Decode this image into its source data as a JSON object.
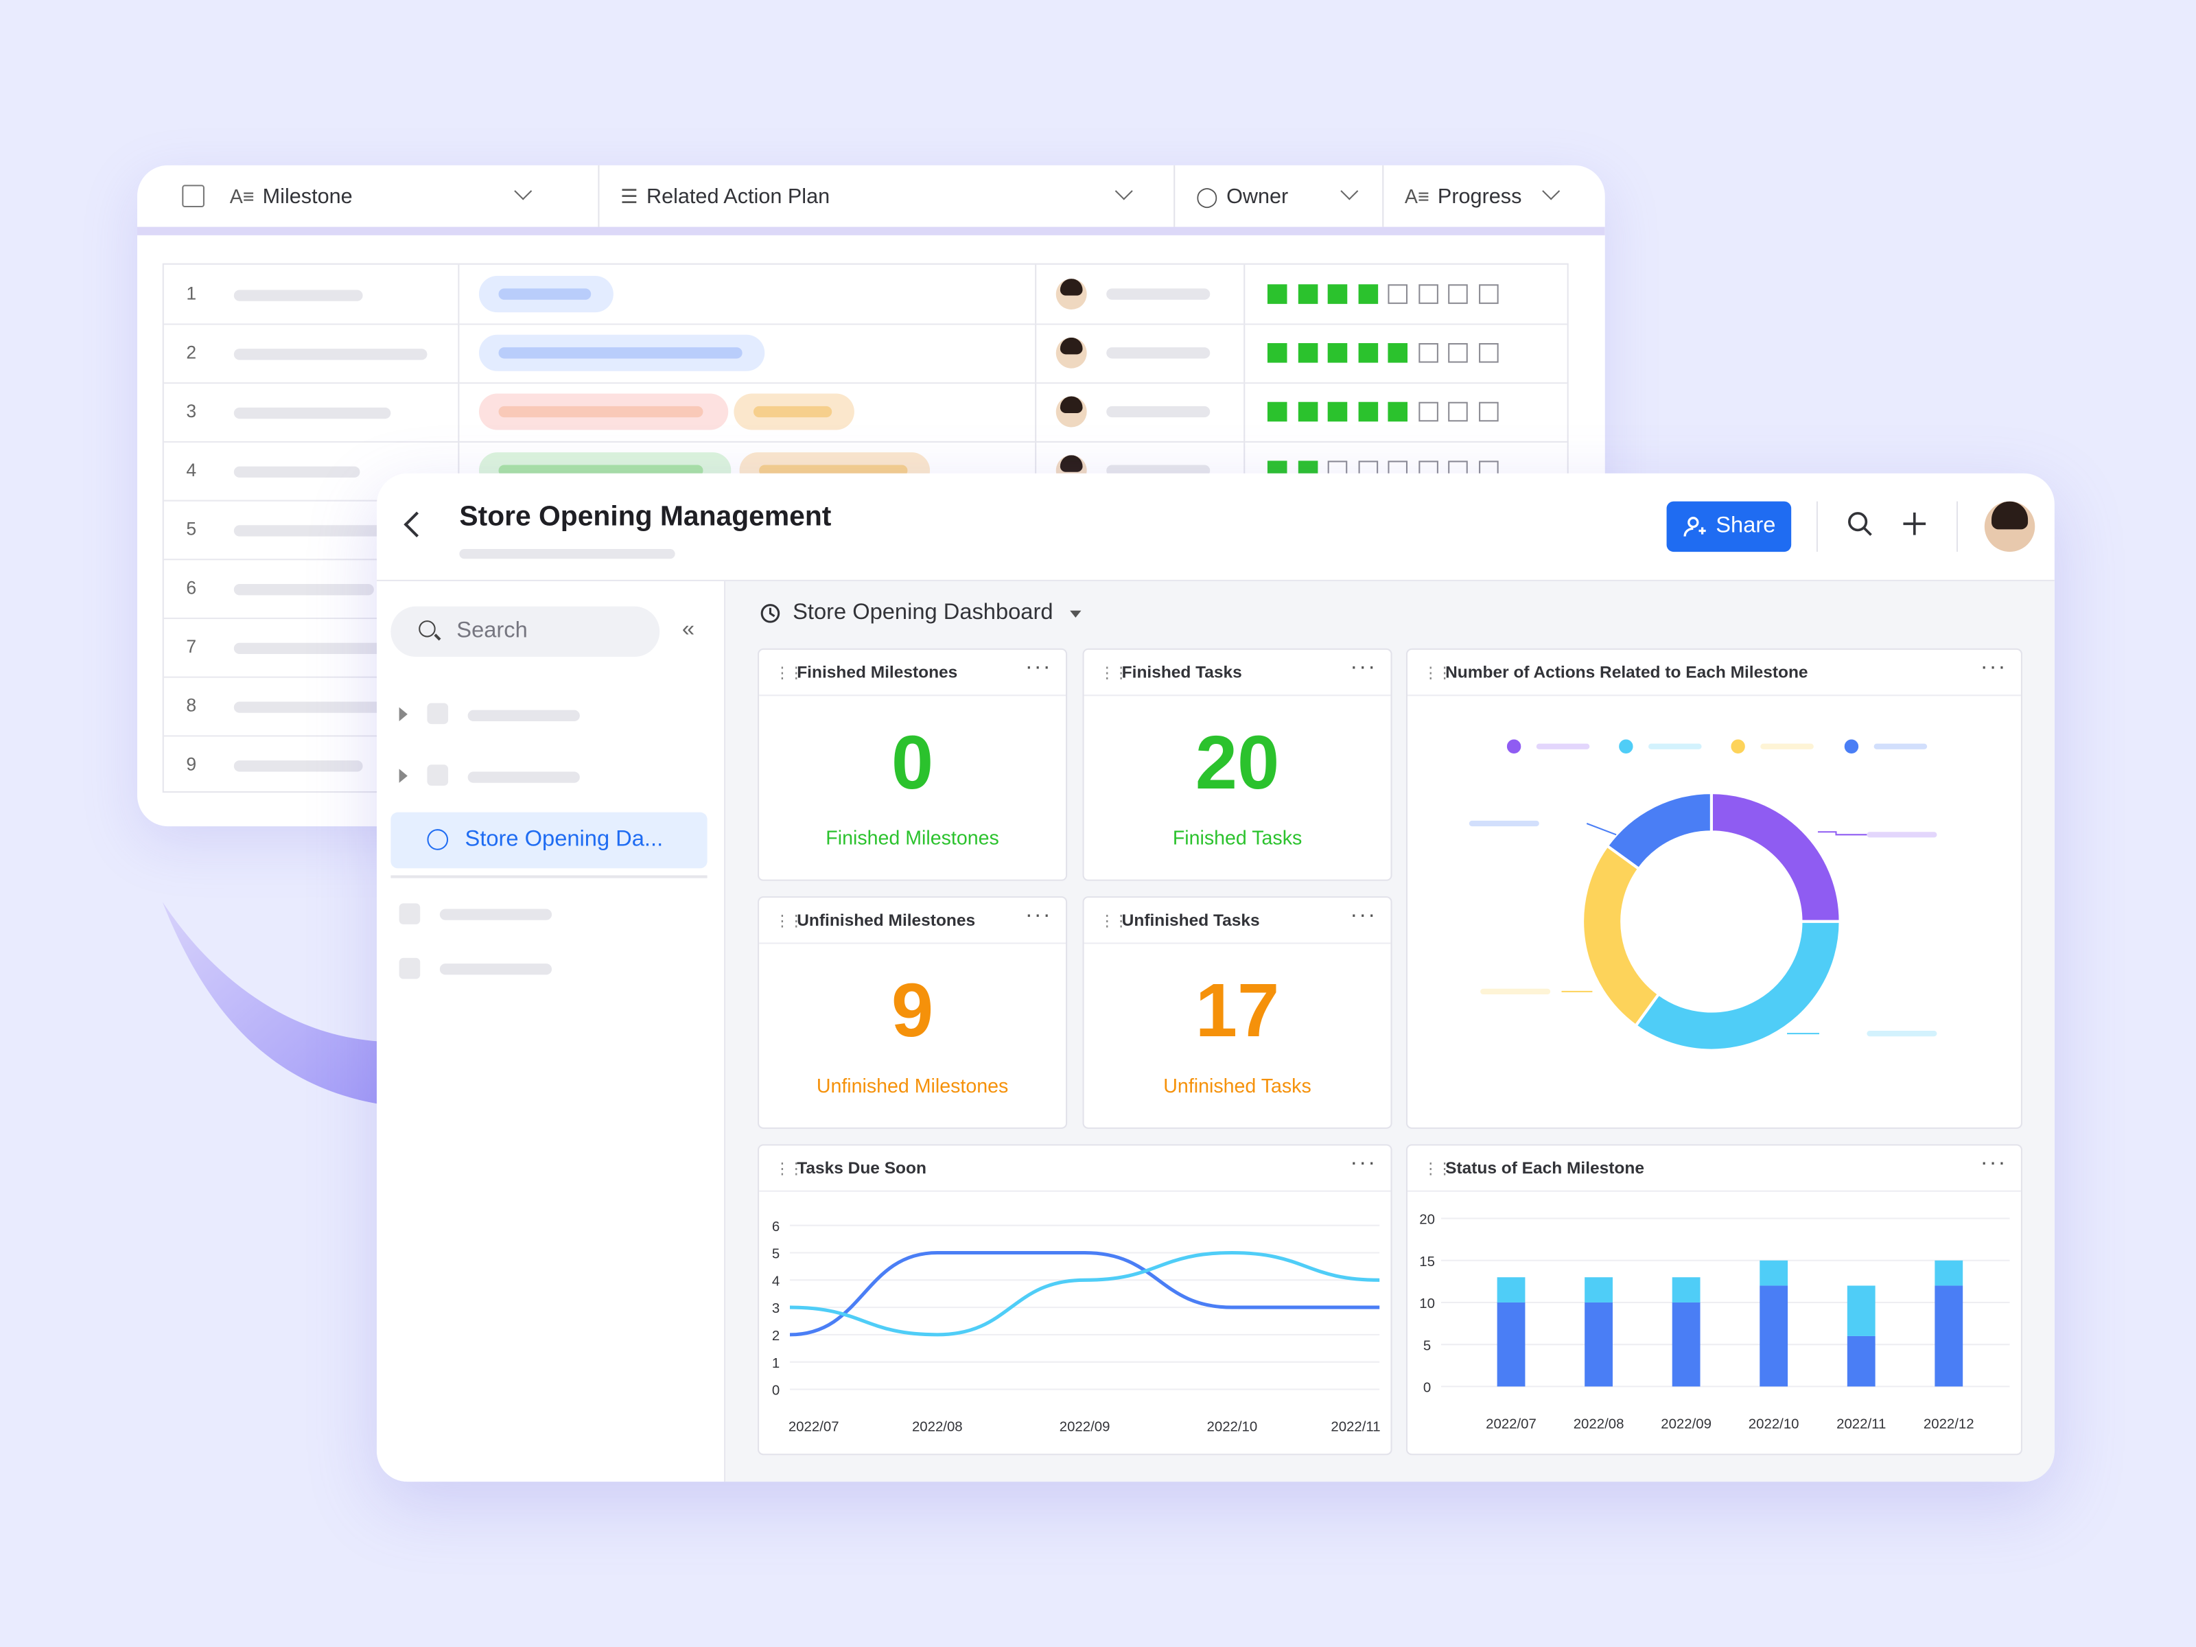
{
  "table": {
    "columns": [
      {
        "label": "Milestone",
        "icon": "text-column-icon"
      },
      {
        "label": "Related Action Plan",
        "icon": "checklist-icon"
      },
      {
        "label": "Owner",
        "icon": "person-icon"
      },
      {
        "label": "Progress",
        "icon": "text-column-icon"
      }
    ],
    "row_numbers": [
      "1",
      "2",
      "3",
      "4",
      "5",
      "6",
      "7",
      "8",
      "9"
    ],
    "progress": [
      4,
      5,
      5,
      2
    ],
    "progress_total": 8
  },
  "dashboard": {
    "title": "Store Opening Management",
    "share_label": "Share",
    "search_placeholder": "Search",
    "nav_active_label": "Store Opening Da...",
    "view_name": "Store Opening Dashboard"
  },
  "widgets": {
    "finished_milestones": {
      "title": "Finished Milestones",
      "value": "0",
      "caption": "Finished Milestones"
    },
    "finished_tasks": {
      "title": "Finished Tasks",
      "value": "20",
      "caption": "Finished Tasks"
    },
    "unfinished_milestones": {
      "title": "Unfinished Milestones",
      "value": "9",
      "caption": "Unfinished Milestones"
    },
    "unfinished_tasks": {
      "title": "Unfinished Tasks",
      "value": "17",
      "caption": "Unfinished Tasks"
    },
    "donut_title": "Number of Actions Related to Each Milestone",
    "line_title": "Tasks Due Soon",
    "bar_title": "Status of Each Milestone"
  },
  "colors": {
    "accent": "#1f6cf2",
    "green": "#2bc22d",
    "orange": "#f5910a",
    "purple": "#8f5cf2",
    "cyan": "#4fcdf7",
    "yellow": "#fdd35a",
    "blue": "#4a7ef5"
  },
  "chart_data": [
    {
      "type": "pie",
      "title": "Number of Actions Related to Each Milestone",
      "series": [
        {
          "color": "#8f5cf2",
          "value": 25
        },
        {
          "color": "#4fcdf7",
          "value": 35
        },
        {
          "color": "#fdd35a",
          "value": 25
        },
        {
          "color": "#4a7ef5",
          "value": 15
        }
      ]
    },
    {
      "type": "line",
      "title": "Tasks Due Soon",
      "x": [
        "2022/07",
        "2022/08",
        "2022/09",
        "2022/10",
        "2022/11"
      ],
      "y_ticks": [
        "0",
        "1",
        "2",
        "3",
        "4",
        "5",
        "6"
      ],
      "ylim": [
        0,
        6
      ],
      "series": [
        {
          "color": "#4a7ef5",
          "values": [
            2,
            5,
            5,
            3,
            3
          ]
        },
        {
          "color": "#4fcdf7",
          "values": [
            3,
            2,
            4,
            5,
            4
          ]
        }
      ]
    },
    {
      "type": "bar",
      "title": "Status of Each Milestone",
      "categories": [
        "2022/07",
        "2022/08",
        "2022/09",
        "2022/10",
        "2022/11",
        "2022/12"
      ],
      "y_ticks": [
        "0",
        "5",
        "10",
        "15",
        "20"
      ],
      "ylim": [
        0,
        20
      ],
      "series": [
        {
          "color": "#4a7ef5",
          "values": [
            10,
            10,
            10,
            12,
            6,
            12
          ]
        },
        {
          "color": "#4fcdf7",
          "values": [
            3,
            3,
            3,
            3,
            6,
            3
          ]
        }
      ]
    }
  ]
}
